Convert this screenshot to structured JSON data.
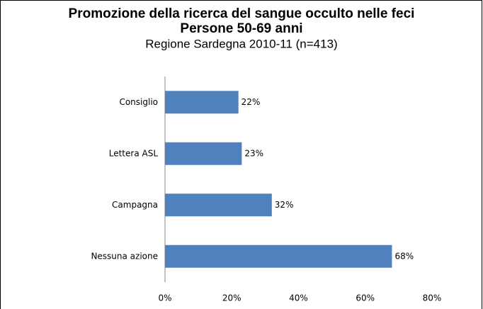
{
  "chart_data": {
    "type": "hbar",
    "title_lines": [
      "Promozione della ricerca del sangue occulto nelle feci",
      "Persone 50-69 anni"
    ],
    "subtitle": "Regione Sardegna 2010-11 (n=413)",
    "categories": [
      "Consiglio",
      "Lettera ASL",
      "Campagna",
      "Nessuna azione"
    ],
    "values": [
      22,
      23,
      32,
      68
    ],
    "value_labels": [
      "22%",
      "23%",
      "32%",
      "68%"
    ],
    "color": "#4f81bd",
    "xlim": [
      0,
      80
    ],
    "xticks": [
      {
        "value": 0,
        "label": "0%"
      },
      {
        "value": 20,
        "label": "20%"
      },
      {
        "value": 40,
        "label": "40%"
      },
      {
        "value": 60,
        "label": "60%"
      },
      {
        "value": 80,
        "label": "80%"
      }
    ]
  }
}
